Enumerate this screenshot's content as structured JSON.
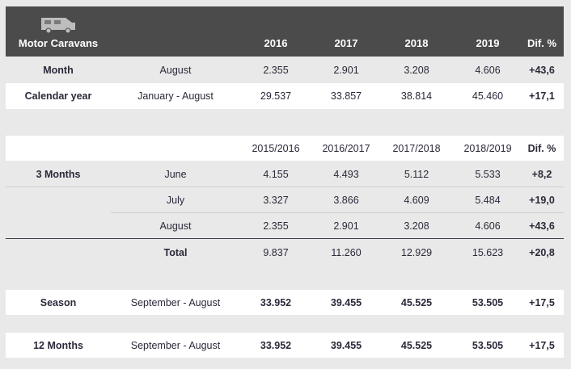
{
  "header": {
    "title": "Motor Caravans",
    "icon": "motor-caravan-icon",
    "years": [
      "2016",
      "2017",
      "2018",
      "2019"
    ],
    "dif": "Dif. %"
  },
  "table1": {
    "rows": [
      {
        "label": "Month",
        "period": "August",
        "values": [
          "2.355",
          "2.901",
          "3.208",
          "4.606"
        ],
        "dif": "+43,6"
      },
      {
        "label": "Calendar year",
        "period": "January - August",
        "values": [
          "29.537",
          "33.857",
          "38.814",
          "45.460"
        ],
        "dif": "+17,1"
      }
    ]
  },
  "table2": {
    "header": {
      "seasons": [
        "2015/2016",
        "2016/2017",
        "2017/2018",
        "2018/2019"
      ],
      "dif": "Dif. %"
    },
    "label": "3 Months",
    "rows": [
      {
        "period": "June",
        "values": [
          "4.155",
          "4.493",
          "5.112",
          "5.533"
        ],
        "dif": "+8,2"
      },
      {
        "period": "July",
        "values": [
          "3.327",
          "3.866",
          "4.609",
          "5.484"
        ],
        "dif": "+19,0"
      },
      {
        "period": "August",
        "values": [
          "2.355",
          "2.901",
          "3.208",
          "4.606"
        ],
        "dif": "+43,6"
      }
    ],
    "total": {
      "period": "Total",
      "values": [
        "9.837",
        "11.260",
        "12.929",
        "15.623"
      ],
      "dif": "+20,8"
    }
  },
  "season": {
    "label": "Season",
    "period": "September - August",
    "values": [
      "33.952",
      "39.455",
      "45.525",
      "53.505"
    ],
    "dif": "+17,5"
  },
  "twelve": {
    "label": "12 Months",
    "period": "September - August",
    "values": [
      "33.952",
      "39.455",
      "45.525",
      "53.505"
    ],
    "dif": "+17,5"
  }
}
